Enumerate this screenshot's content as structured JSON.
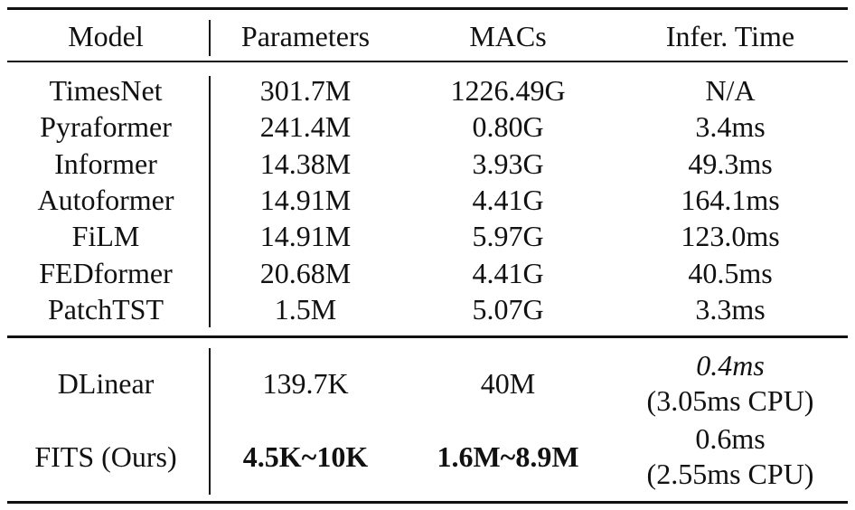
{
  "table": {
    "header": [
      "Model",
      "Parameters",
      "MACs",
      "Infer. Time"
    ],
    "rows": [
      [
        "TimesNet",
        "301.7M",
        "1226.49G",
        "N/A"
      ],
      [
        "Pyraformer",
        "241.4M",
        "0.80G",
        "3.4ms"
      ],
      [
        "Informer",
        "14.38M",
        "3.93G",
        "49.3ms"
      ],
      [
        "Autoformer",
        "14.91M",
        "4.41G",
        "164.1ms"
      ],
      [
        "FiLM",
        "14.91M",
        "5.97G",
        "123.0ms"
      ],
      [
        "FEDformer",
        "20.68M",
        "4.41G",
        "40.5ms"
      ],
      [
        "PatchTST",
        "1.5M",
        "5.07G",
        "3.3ms"
      ]
    ],
    "ours_rows": [
      [
        "DLinear",
        "139.7K",
        "40M",
        [
          "0.4ms",
          "(3.05ms CPU)"
        ]
      ],
      [
        "FITS (Ours)",
        "4.5K~10K",
        "1.6M~8.9M",
        [
          "0.6ms",
          "(2.55ms CPU)"
        ]
      ]
    ]
  }
}
